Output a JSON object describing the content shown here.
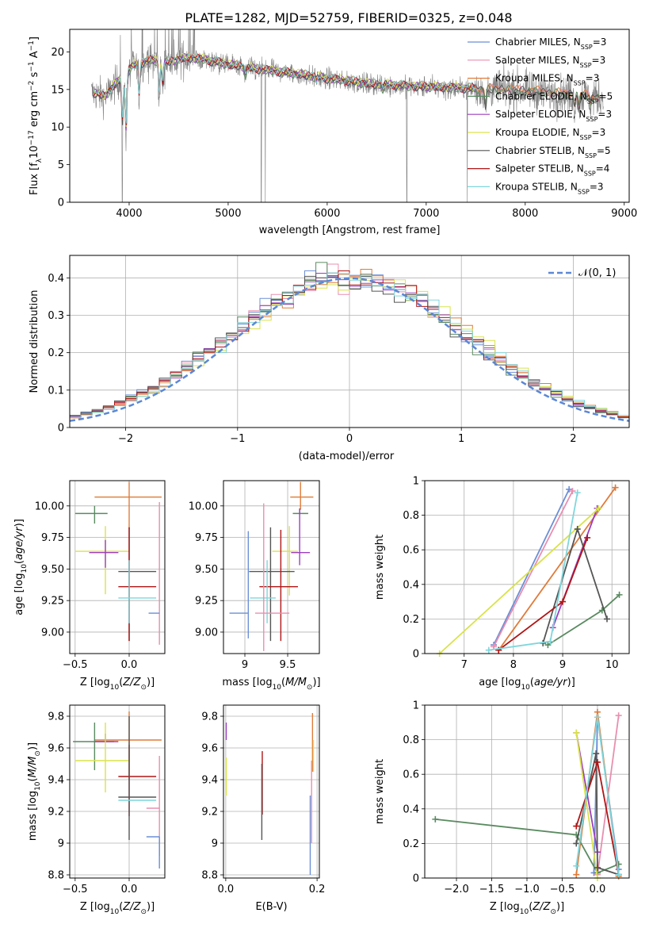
{
  "figure_title": "PLATE=1282, MJD=52759, FIBERID=0325, z=0.048",
  "colors": {
    "chabrier_miles": "#6b8fd6",
    "salpeter_miles": "#e88fb0",
    "kroupa_miles": "#e07b39",
    "chabrier_elodie": "#5a8a60",
    "salpeter_elodie": "#9b3fbf",
    "kroupa_elodie": "#d9e34a",
    "chabrier_stelib": "#555555",
    "salpeter_stelib": "#b01515",
    "kroupa_stelib": "#7fd6dc",
    "data": "#808080",
    "gaussian": "#5b87d6"
  },
  "chart_data": [
    {
      "id": "spectrum",
      "type": "line",
      "xlabel": "wavelength [Angstrom, rest frame]",
      "ylabel": "Flux [f_λ 10^-17 erg cm^-2 s^-1 A^-1]",
      "xlim": [
        3400,
        9050
      ],
      "ylim": [
        0,
        23
      ],
      "xticks": [
        4000,
        5000,
        6000,
        7000,
        8000,
        9000
      ],
      "yticks": [
        0,
        5,
        10,
        15,
        20
      ],
      "legend_position": "top-right",
      "legend": [
        {
          "label": "Chabrier MILES, N_SSP=3",
          "color_key": "chabrier_miles"
        },
        {
          "label": "Salpeter MILES, N_SSP=3",
          "color_key": "salpeter_miles"
        },
        {
          "label": "Kroupa MILES, N_SSP=3",
          "color_key": "kroupa_miles"
        },
        {
          "label": "Chabrier ELODIE, N_SSP=5",
          "color_key": "chabrier_elodie"
        },
        {
          "label": "Salpeter ELODIE, N_SSP=3",
          "color_key": "salpeter_elodie"
        },
        {
          "label": "Kroupa ELODIE, N_SSP=3",
          "color_key": "kroupa_elodie"
        },
        {
          "label": "Chabrier STELIB, N_SSP=5",
          "color_key": "chabrier_stelib"
        },
        {
          "label": "Salpeter STELIB, N_SSP=4",
          "color_key": "salpeter_stelib"
        },
        {
          "label": "Kroupa STELIB, N_SSP=3",
          "color_key": "kroupa_stelib"
        }
      ],
      "continuum": [
        [
          3650,
          14.5
        ],
        [
          3750,
          14.0
        ],
        [
          3850,
          15.5
        ],
        [
          3950,
          16.8
        ],
        [
          4050,
          18.2
        ],
        [
          4200,
          18.8
        ],
        [
          4400,
          18.6
        ],
        [
          4600,
          19.2
        ],
        [
          4800,
          18.8
        ],
        [
          5000,
          18.3
        ],
        [
          5200,
          17.8
        ],
        [
          5400,
          17.5
        ],
        [
          5600,
          17.2
        ],
        [
          5800,
          16.8
        ],
        [
          6000,
          16.4
        ],
        [
          6200,
          16.1
        ],
        [
          6400,
          15.7
        ],
        [
          6600,
          15.6
        ],
        [
          6800,
          15.4
        ],
        [
          7000,
          15.3
        ],
        [
          7200,
          15.2
        ],
        [
          7400,
          15.1
        ],
        [
          7600,
          15.0
        ],
        [
          7800,
          15.0
        ],
        [
          8000,
          14.8
        ],
        [
          8200,
          14.6
        ],
        [
          8400,
          14.4
        ],
        [
          8600,
          14.2
        ],
        [
          8750,
          14.0
        ]
      ],
      "model_end": [
        7500,
        8750,
        8750,
        8750,
        7500,
        7500,
        8750,
        7500,
        7500
      ],
      "absorption": [
        [
          3933,
          10
        ],
        [
          3968,
          9
        ],
        [
          4100,
          14
        ],
        [
          4304,
          14.5
        ],
        [
          4340,
          15.5
        ],
        [
          5175,
          16.8
        ],
        [
          5890,
          16.1
        ],
        [
          6563,
          14.9
        ],
        [
          7600,
          12.5
        ],
        [
          8498,
          12.8
        ],
        [
          8542,
          12.5
        ],
        [
          8662,
          12.8
        ]
      ],
      "data_dropouts": [
        3930,
        5335,
        5375,
        6805,
        7415
      ]
    },
    {
      "id": "residuals",
      "type": "line",
      "xlabel": "(data-model)/error",
      "ylabel": "Normed distribution",
      "xlim": [
        -2.5,
        2.5
      ],
      "ylim": [
        0,
        0.46
      ],
      "xticks": [
        -2,
        -1,
        0,
        1,
        2
      ],
      "xticklabels": [
        "−2",
        "−1",
        "0",
        "1",
        "2"
      ],
      "yticks": [
        0.0,
        0.1,
        0.2,
        0.3,
        0.4
      ],
      "legend_label": "𝒩(0, 1)",
      "legend_position": "top-right",
      "bin_width": 0.1
    },
    {
      "id": "age_vs_Z",
      "type": "scatter",
      "xlabel": "Z [log10(Z/Z⊙)]",
      "ylabel": "age [log10(age/yr)]",
      "xlim": [
        -0.55,
        0.33
      ],
      "ylim": [
        8.83,
        10.2
      ],
      "xticks": [
        -0.5,
        0.0
      ],
      "xticklabels": [
        "−0.5",
        "0.0"
      ],
      "yticks": [
        9.0,
        9.25,
        9.5,
        9.75,
        10.0
      ],
      "yticklabels": [
        "9.00",
        "9.25",
        "9.50",
        "9.75",
        "10.00"
      ],
      "points": [
        {
          "c": "kroupa_miles",
          "x": 0.0,
          "xerr": [
            0.32,
            0.3
          ],
          "y": 10.07,
          "yerr": [
            0.25,
            0.12
          ]
        },
        {
          "c": "chabrier_elodie",
          "x": -0.32,
          "xerr": [
            0.18,
            0.12
          ],
          "y": 9.94,
          "yerr": [
            0.08,
            0.06
          ]
        },
        {
          "c": "kroupa_elodie",
          "x": -0.22,
          "xerr": [
            0.28,
            0.22
          ],
          "y": 9.64,
          "yerr": [
            0.34,
            0.2
          ]
        },
        {
          "c": "salpeter_elodie",
          "x": -0.22,
          "xerr": [
            0.15,
            0.12
          ],
          "y": 9.63,
          "yerr": [
            0.12,
            0.1
          ]
        },
        {
          "c": "chabrier_stelib",
          "x": 0.0,
          "xerr": [
            0.1,
            0.25
          ],
          "y": 9.48,
          "yerr": [
            0.55,
            0.35
          ]
        },
        {
          "c": "salpeter_stelib",
          "x": 0.0,
          "xerr": [
            0.1,
            0.25
          ],
          "y": 9.36,
          "yerr": [
            0.43,
            0.47
          ]
        },
        {
          "c": "kroupa_stelib",
          "x": 0.0,
          "xerr": [
            0.1,
            0.25
          ],
          "y": 9.27,
          "yerr": [
            0.2,
            0.3
          ]
        },
        {
          "c": "salpeter_miles",
          "x": 0.28,
          "xerr": [
            0.0,
            0.0
          ],
          "y": 9.27,
          "yerr": [
            0.37,
            0.76
          ]
        },
        {
          "c": "chabrier_miles",
          "x": 0.28,
          "xerr": [
            0.1,
            0.0
          ],
          "y": 9.15,
          "yerr": [
            0.0,
            0.0
          ]
        }
      ]
    },
    {
      "id": "age_vs_mass",
      "type": "scatter",
      "xlabel": "mass [log10(M/M⊙)]",
      "ylabel": "",
      "xlim": [
        8.75,
        9.87
      ],
      "ylim": [
        8.83,
        10.2
      ],
      "xticks": [
        9.0,
        9.5
      ],
      "yticks": [
        9.0,
        9.25,
        9.5,
        9.75,
        10.0
      ],
      "yticklabels": [
        "9.00",
        "9.25",
        "9.50",
        "9.75",
        "10.00"
      ],
      "points": [
        {
          "c": "kroupa_miles",
          "x": 9.65,
          "xerr": [
            0.12,
            0.15
          ],
          "y": 10.07,
          "yerr": [
            0.1,
            0.12
          ]
        },
        {
          "c": "chabrier_elodie",
          "x": 9.64,
          "xerr": [
            0.08,
            0.1
          ],
          "y": 9.94,
          "yerr": [
            0.0,
            0.04
          ]
        },
        {
          "c": "salpeter_elodie",
          "x": 9.64,
          "xerr": [
            0.1,
            0.12
          ],
          "y": 9.63,
          "yerr": [
            0.1,
            0.35
          ]
        },
        {
          "c": "kroupa_elodie",
          "x": 9.52,
          "xerr": [
            0.2,
            0.1
          ],
          "y": 9.64,
          "yerr": [
            0.35,
            0.2
          ]
        },
        {
          "c": "chabrier_stelib",
          "x": 9.3,
          "xerr": [
            0.25,
            0.28
          ],
          "y": 9.48,
          "yerr": [
            0.55,
            0.35
          ]
        },
        {
          "c": "salpeter_stelib",
          "x": 9.42,
          "xerr": [
            0.25,
            0.2
          ],
          "y": 9.36,
          "yerr": [
            0.43,
            0.45
          ]
        },
        {
          "c": "kroupa_stelib",
          "x": 9.26,
          "xerr": [
            0.2,
            0.1
          ],
          "y": 9.27,
          "yerr": [
            0.2,
            0.3
          ]
        },
        {
          "c": "salpeter_miles",
          "x": 9.22,
          "xerr": [
            0.1,
            0.3
          ],
          "y": 9.15,
          "yerr": [
            0.3,
            0.87
          ]
        },
        {
          "c": "chabrier_miles",
          "x": 9.04,
          "xerr": [
            0.22,
            0.0
          ],
          "y": 9.15,
          "yerr": [
            0.2,
            0.65
          ]
        }
      ]
    },
    {
      "id": "mass_weight_vs_age",
      "type": "line",
      "xlabel": "age [log10(age/yr)]",
      "ylabel": "mass weight",
      "xlim": [
        6.2,
        10.35
      ],
      "ylim": [
        0,
        1.0
      ],
      "xticks": [
        7,
        8,
        9,
        10
      ],
      "yticks": [
        0.0,
        0.2,
        0.4,
        0.6,
        0.8,
        1.0
      ],
      "series": [
        {
          "c": "chabrier_miles",
          "x": [
            7.6,
            9.13
          ],
          "y": [
            0.05,
            0.95
          ]
        },
        {
          "c": "salpeter_miles",
          "x": [
            7.6,
            9.2
          ],
          "y": [
            0.04,
            0.94
          ]
        },
        {
          "c": "kroupa_miles",
          "x": [
            7.7,
            10.07
          ],
          "y": [
            0.02,
            0.96
          ]
        },
        {
          "c": "chabrier_elodie",
          "x": [
            8.7,
            9.8,
            10.15
          ],
          "y": [
            0.05,
            0.25,
            0.34
          ]
        },
        {
          "c": "salpeter_elodie",
          "x": [
            8.8,
            9.7
          ],
          "y": [
            0.15,
            0.84
          ]
        },
        {
          "c": "kroupa_elodie",
          "x": [
            6.5,
            9.73
          ],
          "y": [
            0.0,
            0.84
          ]
        },
        {
          "c": "chabrier_stelib",
          "x": [
            8.6,
            9.3,
            9.9
          ],
          "y": [
            0.06,
            0.72,
            0.2
          ]
        },
        {
          "c": "salpeter_stelib",
          "x": [
            7.7,
            9.0,
            9.5
          ],
          "y": [
            0.02,
            0.3,
            0.67
          ]
        },
        {
          "c": "kroupa_stelib",
          "x": [
            7.5,
            8.75,
            9.3
          ],
          "y": [
            0.02,
            0.07,
            0.93
          ]
        }
      ]
    },
    {
      "id": "mass_vs_Z",
      "type": "scatter",
      "xlabel": "Z [log10(Z/Z⊙)]",
      "ylabel": "mass [log10(M/M⊙)]",
      "xlim": [
        -0.55,
        0.33
      ],
      "ylim": [
        8.78,
        9.87
      ],
      "xticks": [
        -0.5,
        0.0
      ],
      "xticklabels": [
        "−0.5",
        "0.0"
      ],
      "yticks": [
        8.8,
        9.0,
        9.2,
        9.4,
        9.6,
        9.8
      ],
      "points": [
        {
          "c": "kroupa_miles",
          "x": 0.0,
          "xerr": [
            0.32,
            0.3
          ],
          "y": 9.65,
          "yerr": [
            0.25,
            0.18
          ]
        },
        {
          "c": "chabrier_elodie",
          "x": -0.32,
          "xerr": [
            0.2,
            0.18
          ],
          "y": 9.64,
          "yerr": [
            0.18,
            0.12
          ]
        },
        {
          "c": "salpeter_elodie",
          "x": -0.22,
          "xerr": [
            0.1,
            0.12
          ],
          "y": 9.64,
          "yerr": [
            0.0,
            0.05
          ]
        },
        {
          "c": "kroupa_elodie",
          "x": -0.22,
          "xerr": [
            0.28,
            0.22
          ],
          "y": 9.52,
          "yerr": [
            0.2,
            0.24
          ]
        },
        {
          "c": "salpeter_stelib",
          "x": 0.0,
          "xerr": [
            0.1,
            0.25
          ],
          "y": 9.42,
          "yerr": [
            0.25,
            0.2
          ]
        },
        {
          "c": "chabrier_stelib",
          "x": 0.0,
          "xerr": [
            0.1,
            0.25
          ],
          "y": 9.29,
          "yerr": [
            0.27,
            0.51
          ]
        },
        {
          "c": "kroupa_stelib",
          "x": 0.0,
          "xerr": [
            0.1,
            0.25
          ],
          "y": 9.27,
          "yerr": [
            0.0,
            0.0
          ]
        },
        {
          "c": "salpeter_miles",
          "x": 0.28,
          "xerr": [
            0.12,
            0.0
          ],
          "y": 9.22,
          "yerr": [
            0.3,
            0.33
          ]
        },
        {
          "c": "chabrier_miles",
          "x": 0.28,
          "xerr": [
            0.12,
            0.0
          ],
          "y": 9.04,
          "yerr": [
            0.2,
            0.0
          ]
        }
      ]
    },
    {
      "id": "mass_vs_ebv",
      "type": "scatter",
      "xlabel": "E(B-V)",
      "ylabel": "",
      "xlim": [
        -0.005,
        0.205
      ],
      "ylim": [
        8.78,
        9.87
      ],
      "xticks": [
        0.0,
        0.2
      ],
      "xticklabels": [
        "0.0",
        "0.2"
      ],
      "yticks": [
        8.8,
        9.0,
        9.2,
        9.4,
        9.6,
        9.8
      ],
      "points": [
        {
          "c": "salpeter_elodie",
          "x": 0.001,
          "xerr": [
            0,
            0
          ],
          "y": 9.7,
          "yerr": [
            0.05,
            0.06
          ]
        },
        {
          "c": "kroupa_elodie",
          "x": 0.001,
          "xerr": [
            0,
            0
          ],
          "y": 9.42,
          "yerr": [
            0.12,
            0.12
          ]
        },
        {
          "c": "salpeter_stelib",
          "x": 0.08,
          "xerr": [
            0,
            0
          ],
          "y": 9.4,
          "yerr": [
            0.22,
            0.18
          ]
        },
        {
          "c": "chabrier_stelib",
          "x": 0.079,
          "xerr": [
            0,
            0
          ],
          "y": 9.2,
          "yerr": [
            0.18,
            0.3
          ]
        },
        {
          "c": "kroupa_miles",
          "x": 0.19,
          "xerr": [
            0,
            0
          ],
          "y": 9.6,
          "yerr": [
            0.15,
            0.22
          ]
        },
        {
          "c": "kroupa_elodie",
          "x": 0.192,
          "xerr": [
            0,
            0
          ],
          "y": 9.55,
          "yerr": [
            0.1,
            0.1
          ]
        },
        {
          "c": "salpeter_miles",
          "x": 0.188,
          "xerr": [
            0,
            0
          ],
          "y": 9.22,
          "yerr": [
            0.22,
            0.3
          ]
        },
        {
          "c": "chabrier_miles",
          "x": 0.185,
          "xerr": [
            0,
            0
          ],
          "y": 9.05,
          "yerr": [
            0.25,
            0.25
          ]
        }
      ]
    },
    {
      "id": "mass_weight_vs_Z",
      "type": "line",
      "xlabel": "Z [log10(Z/Z⊙)]",
      "ylabel": "mass weight",
      "xlim": [
        -2.45,
        0.45
      ],
      "ylim": [
        0,
        1.0
      ],
      "xticks": [
        -2.0,
        -1.5,
        -1.0,
        -0.5,
        0.0
      ],
      "xticklabels": [
        "−2.0",
        "−1.5",
        "−1.0",
        "−0.5",
        "0.0"
      ],
      "yticks": [
        0.0,
        0.2,
        0.4,
        0.6,
        0.8,
        1.0
      ],
      "series": [
        {
          "c": "chabrier_miles",
          "x": [
            -0.05,
            0.0,
            0.3
          ],
          "y": [
            0.03,
            0.93,
            0.05
          ]
        },
        {
          "c": "salpeter_miles",
          "x": [
            0.0,
            0.3
          ],
          "y": [
            0.02,
            0.94
          ]
        },
        {
          "c": "kroupa_miles",
          "x": [
            -0.3,
            0.0,
            0.3
          ],
          "y": [
            0.02,
            0.96,
            0.01
          ]
        },
        {
          "c": "chabrier_elodie",
          "x": [
            -2.3,
            -0.3,
            0.0,
            0.3
          ],
          "y": [
            0.34,
            0.25,
            0.03,
            0.08
          ]
        },
        {
          "c": "salpeter_elodie",
          "x": [
            -0.3,
            0.0
          ],
          "y": [
            0.84,
            0.15
          ]
        },
        {
          "c": "kroupa_elodie",
          "x": [
            -0.3,
            0.0
          ],
          "y": [
            0.84,
            0.0
          ]
        },
        {
          "c": "chabrier_stelib",
          "x": [
            -0.3,
            -0.02,
            0.0,
            0.3
          ],
          "y": [
            0.2,
            0.72,
            0.06,
            0.02
          ]
        },
        {
          "c": "salpeter_stelib",
          "x": [
            -0.3,
            0.0,
            0.3
          ],
          "y": [
            0.3,
            0.67,
            0.02
          ]
        },
        {
          "c": "kroupa_stelib",
          "x": [
            -0.3,
            0.0,
            0.3
          ],
          "y": [
            0.07,
            0.93,
            0.02
          ]
        }
      ]
    }
  ]
}
